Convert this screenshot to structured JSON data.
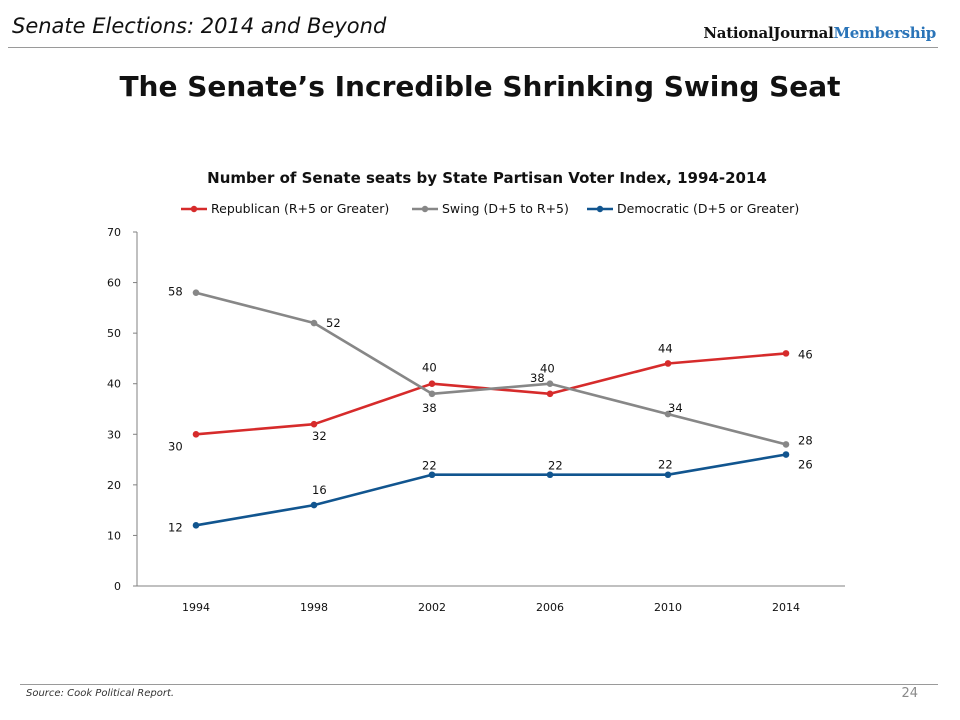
{
  "header": {
    "title": "Senate Elections: 2014 and Beyond",
    "brand_part1": "NationalJournal",
    "brand_part2": "Membership",
    "brand_colors": {
      "part1": "#111111",
      "part2": "#2a74b8"
    }
  },
  "slide": {
    "title": "The Senate’s Incredible Shrinking Swing Seat"
  },
  "footer": {
    "source": "Source: Cook Political Report.",
    "page_number": "24"
  },
  "chart_data": {
    "type": "line",
    "title": "Number of Senate seats by State Partisan Voter Index, 1994-2014",
    "xlabel": "",
    "ylabel": "",
    "categories": [
      "1994",
      "1998",
      "2002",
      "2006",
      "2010",
      "2014"
    ],
    "ylim": [
      0,
      70
    ],
    "yticks": [
      0,
      10,
      20,
      30,
      40,
      50,
      60,
      70
    ],
    "grid": false,
    "legend_position": "top",
    "series": [
      {
        "name": "Republican (R+5 or Greater)",
        "values": [
          30,
          32,
          40,
          38,
          44,
          46
        ],
        "color": "#d62b2b"
      },
      {
        "name": "Swing (D+5 to R+5)",
        "values": [
          58,
          52,
          38,
          40,
          34,
          28
        ],
        "color": "#878787"
      },
      {
        "name": "Democratic (D+5 or Greater)",
        "values": [
          12,
          16,
          22,
          22,
          22,
          26
        ],
        "color": "#11558f"
      }
    ]
  }
}
